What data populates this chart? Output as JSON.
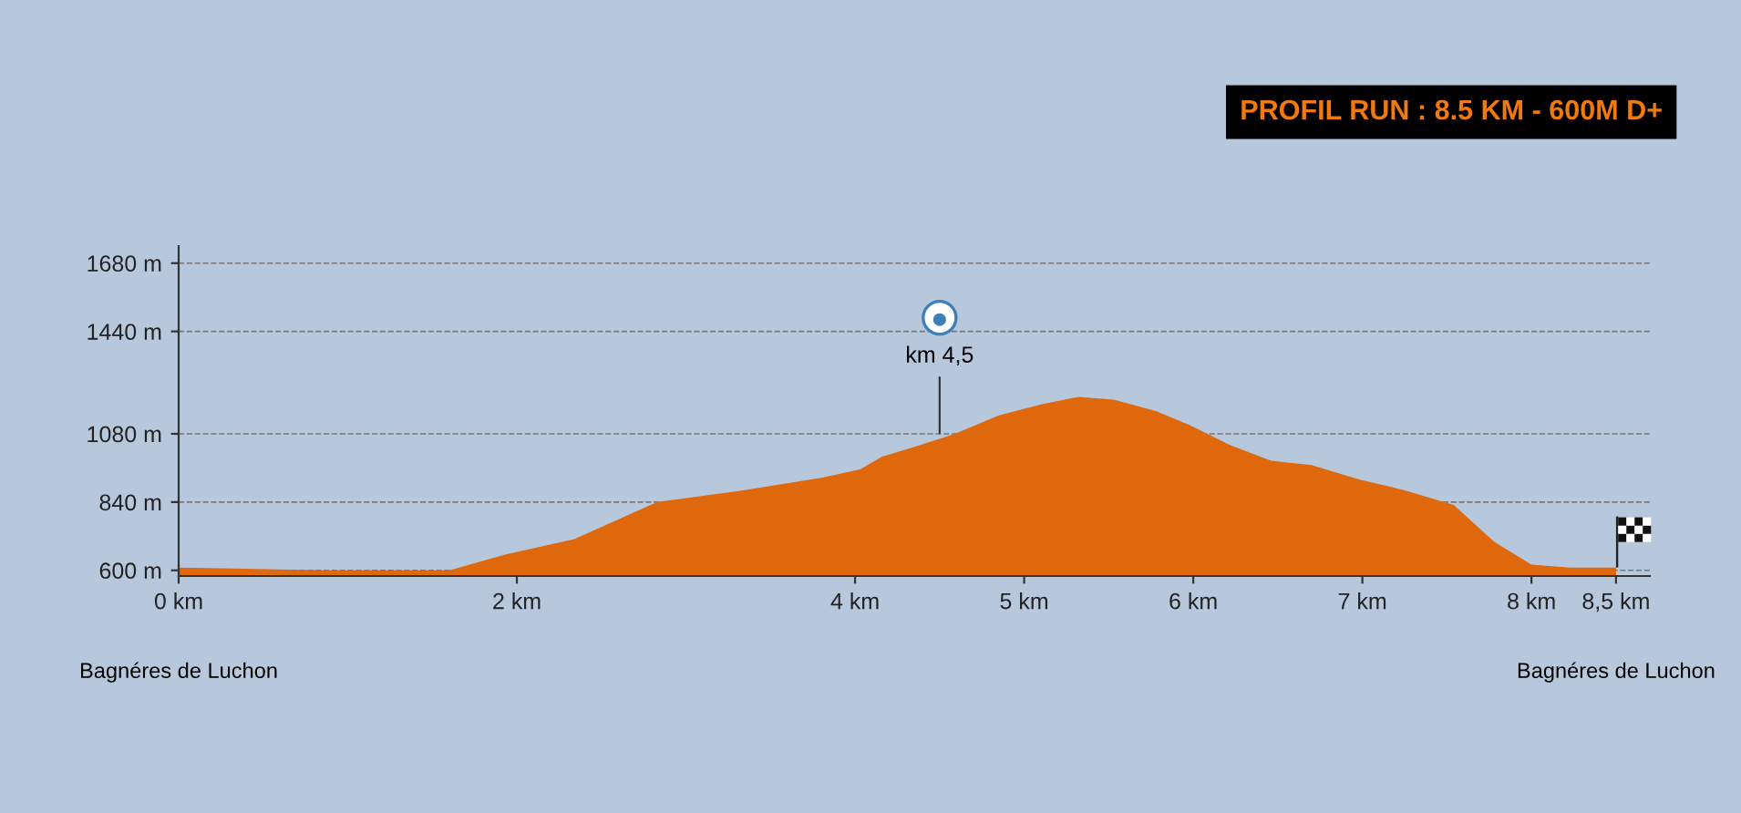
{
  "chart_data": {
    "type": "area",
    "title": "PROFIL RUN : 8.5 KM - 600M D+",
    "x": [
      0,
      0.86,
      1.6,
      1.93,
      2.34,
      2.83,
      3.32,
      3.8,
      4.03,
      4.16,
      4.33,
      4.59,
      4.85,
      5.11,
      5.32,
      5.53,
      5.78,
      5.98,
      6.22,
      6.46,
      6.7,
      6.98,
      7.26,
      7.54,
      7.78,
      8.0,
      8.23,
      8.5
    ],
    "series": [
      {
        "color": "#e0680c",
        "values": [
          610,
          600,
          600,
          655,
          710,
          840,
          880,
          925,
          955,
          1000,
          1030,
          1080,
          1145,
          1185,
          1210,
          1200,
          1160,
          1110,
          1040,
          985,
          970,
          920,
          880,
          830,
          700,
          620,
          610,
          610
        ]
      }
    ],
    "xlim": [
      0,
      8.7
    ],
    "xticks": [
      {
        "value": 0,
        "label": "0 km"
      },
      {
        "value": 2,
        "label": "2 km"
      },
      {
        "value": 4,
        "label": "4 km"
      },
      {
        "value": 5,
        "label": "5 km"
      },
      {
        "value": 6,
        "label": "6 km"
      },
      {
        "value": 7,
        "label": "7 km"
      },
      {
        "value": 8,
        "label": "8 km"
      },
      {
        "value": 8.5,
        "label": "8,5 km"
      }
    ],
    "ylim": [
      580,
      1740
    ],
    "yticks": [
      {
        "value": 600,
        "label": "600 m"
      },
      {
        "value": 840,
        "label": "840 m"
      },
      {
        "value": 1080,
        "label": "1080 m"
      },
      {
        "value": 1440,
        "label": "1440 m"
      },
      {
        "value": 1680,
        "label": "1680 m"
      }
    ],
    "grid": "y",
    "annotations": [
      {
        "text": "km 4,5",
        "x": 4.5,
        "y": 1065
      },
      "Bagnéres de Luchon",
      "Bagnéres de Luchon"
    ]
  }
}
